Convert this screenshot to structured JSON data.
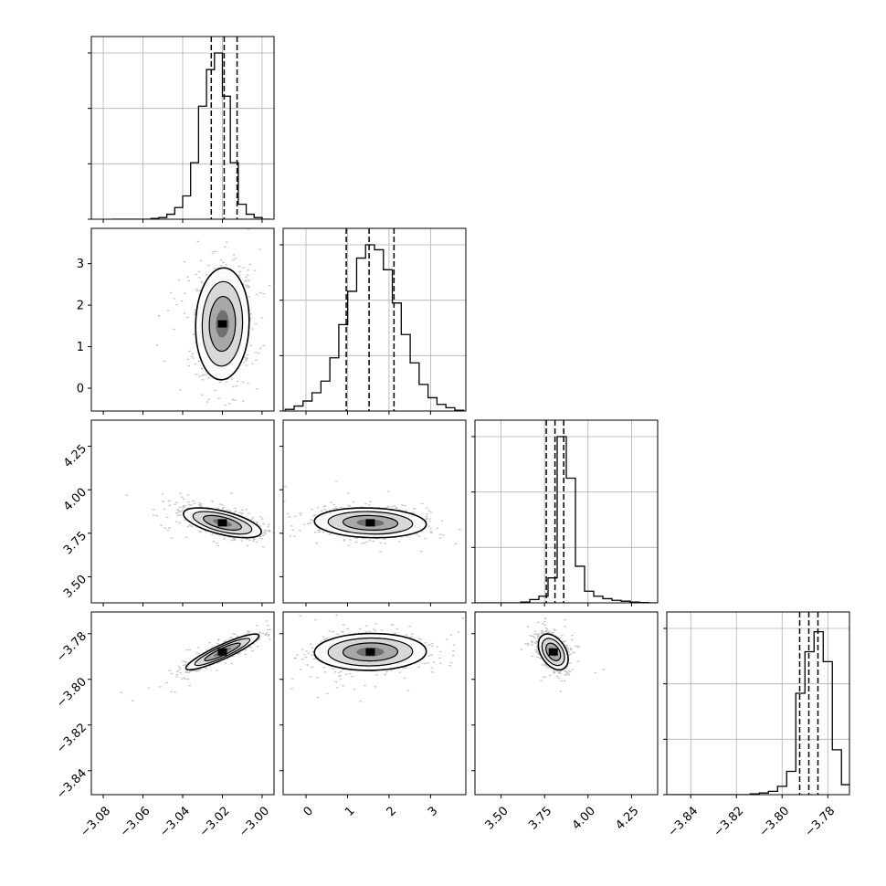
{
  "chart_data": {
    "type": "corner",
    "title": "",
    "grid": true,
    "parameters": [
      {
        "range": [
          -3.086,
          -2.994
        ],
        "ticks": [
          -3.08,
          -3.06,
          -3.04,
          -3.02,
          -3.0
        ],
        "tick_labels": [
          "−3.08",
          "−3.06",
          "−3.04",
          "−3.02",
          "−3.00"
        ],
        "quantiles": [
          -3.0256,
          -3.0191,
          -3.0126
        ],
        "hist_edges_range": [
          -3.076,
          -2.996
        ],
        "hist": [
          0,
          0,
          0,
          0,
          0,
          0.005,
          0.01,
          0.03,
          0.07,
          0.14,
          0.34,
          0.68,
          0.9,
          1.0,
          0.74,
          0.34,
          0.09,
          0.03,
          0.01,
          0
        ]
      },
      {
        "range": [
          -0.55,
          3.85
        ],
        "ticks": [
          0,
          1,
          2,
          3
        ],
        "tick_labels": [
          "0",
          "1",
          "2",
          "3"
        ],
        "quantiles": [
          0.97,
          1.52,
          2.12
        ],
        "hist_edges_range": [
          -0.5,
          3.8
        ],
        "hist": [
          0.01,
          0.03,
          0.06,
          0.11,
          0.18,
          0.32,
          0.52,
          0.72,
          0.92,
          1.0,
          0.97,
          0.85,
          0.65,
          0.46,
          0.29,
          0.16,
          0.08,
          0.04,
          0.02,
          0.005
        ]
      },
      {
        "range": [
          3.35,
          4.4
        ],
        "ticks": [
          3.5,
          3.75,
          4.0,
          4.25
        ],
        "tick_labels": [
          "3.50",
          "3.75",
          "4.00",
          "4.25"
        ],
        "quantiles": [
          3.76,
          3.81,
          3.86
        ],
        "hist_edges_range": [
          3.35,
          4.4
        ],
        "hist": [
          0,
          0,
          0,
          0,
          0,
          0.005,
          0.02,
          0.04,
          0.15,
          1.0,
          0.75,
          0.22,
          0.07,
          0.04,
          0.025,
          0.015,
          0.01,
          0.005,
          0.002,
          0
        ]
      },
      {
        "range": [
          -3.8505,
          -3.7705
        ],
        "ticks": [
          -3.84,
          -3.82,
          -3.8,
          -3.78
        ],
        "tick_labels": [
          "−3.84",
          "−3.82",
          "−3.80",
          "−3.78"
        ],
        "quantiles": [
          -3.7923,
          -3.7883,
          -3.7843
        ],
        "hist_edges_range": [
          -3.85,
          -3.77
        ],
        "hist": [
          0,
          0,
          0,
          0,
          0,
          0,
          0,
          0,
          0,
          0.005,
          0.01,
          0.02,
          0.05,
          0.14,
          0.61,
          0.86,
          0.98,
          0.8,
          0.27,
          0.06
        ]
      }
    ],
    "pairs": [
      {
        "x": 0,
        "y": 1,
        "center": [
          -3.02,
          1.55
        ],
        "sd": [
          0.0055,
          0.55
        ],
        "corr": 0.05
      },
      {
        "x": 0,
        "y": 2,
        "center": [
          -3.02,
          3.81
        ],
        "sd": [
          0.008,
          0.035
        ],
        "corr": -0.6
      },
      {
        "x": 1,
        "y": 2,
        "center": [
          1.55,
          3.81
        ],
        "sd": [
          0.55,
          0.035
        ],
        "corr": -0.1
      },
      {
        "x": 0,
        "y": 3,
        "center": [
          -3.02,
          -3.788
        ],
        "sd": [
          0.0075,
          0.0032
        ],
        "corr": 0.9
      },
      {
        "x": 1,
        "y": 3,
        "center": [
          1.55,
          -3.788
        ],
        "sd": [
          0.55,
          0.0033
        ],
        "corr": 0.03
      },
      {
        "x": 2,
        "y": 3,
        "center": [
          3.8,
          -3.788
        ],
        "sd": [
          0.035,
          0.0032
        ],
        "corr": -0.4
      }
    ]
  }
}
